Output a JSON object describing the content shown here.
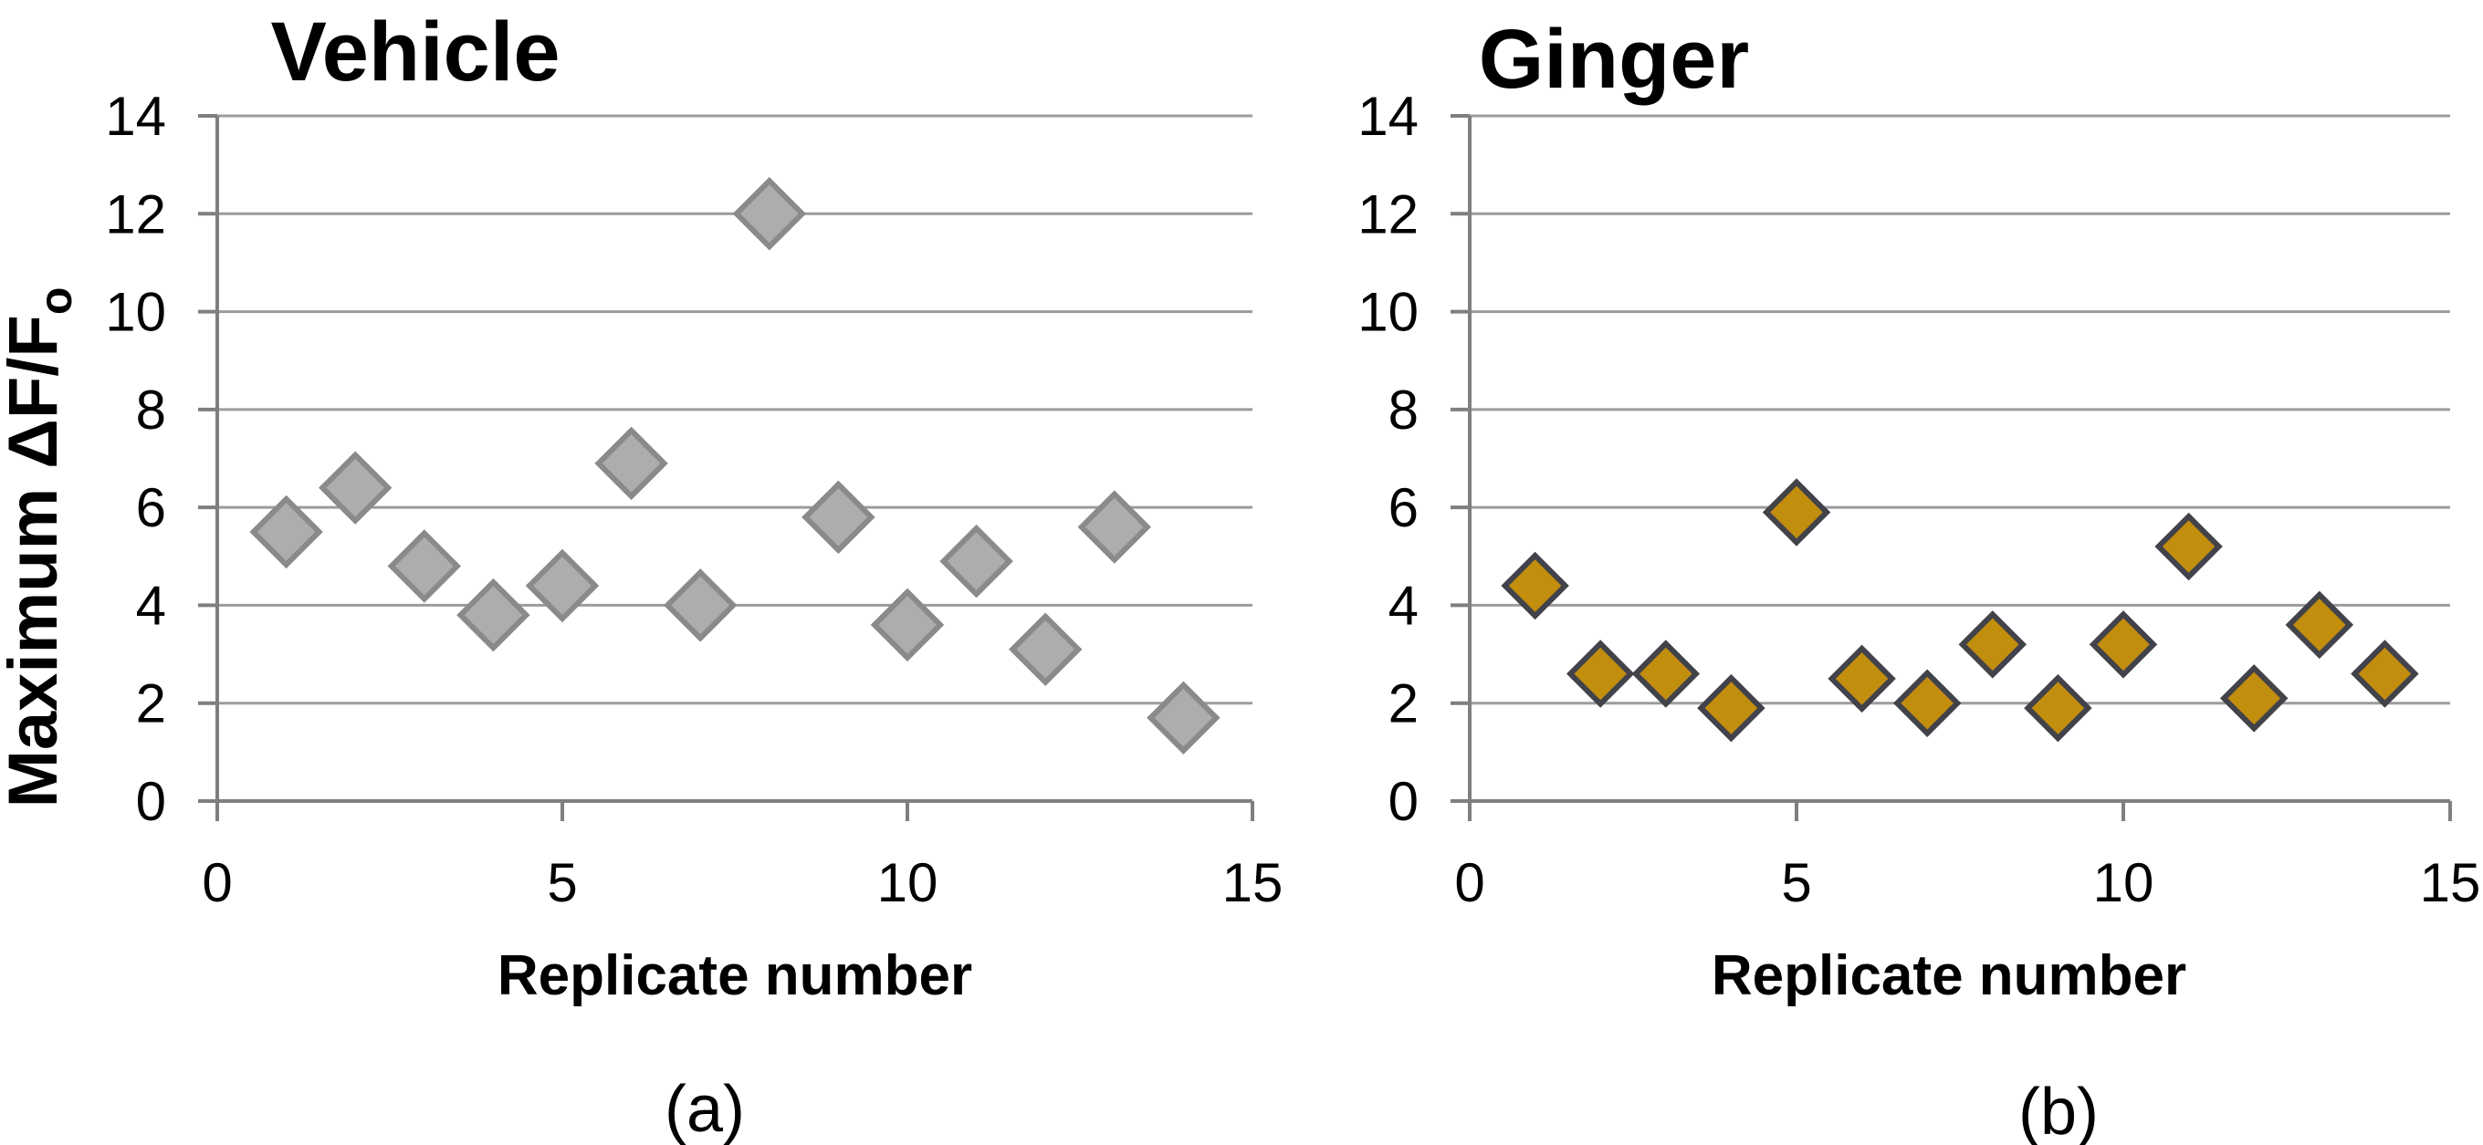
{
  "figure": {
    "background": "#FFFFFF",
    "y_axis_title_main": "Maximum ΔF/F",
    "y_axis_title_sub": "o"
  },
  "colors": {
    "gridline": "#9C9C9C",
    "axis": "#7F7F7F",
    "text": "#000000",
    "vehicle_marker_fill": "#ADADAD",
    "vehicle_marker_stroke": "#8A8A8A",
    "ginger_marker_fill": "#C28E0D",
    "ginger_marker_stroke": "#42424A"
  },
  "chart_data": [
    {
      "type": "scatter",
      "title": "Vehicle",
      "xlabel": "Replicate number",
      "ylabel": "Maximum ΔF/Fo",
      "caption": "(a)",
      "xlim": [
        0,
        15
      ],
      "ylim": [
        0,
        14
      ],
      "x_ticks": [
        0,
        5,
        10,
        15
      ],
      "y_ticks": [
        0,
        2,
        4,
        6,
        8,
        10,
        12,
        14
      ],
      "grid": "horizontal",
      "legend": "none",
      "marker": "diamond",
      "marker_fill": "#ADADAD",
      "marker_stroke": "#8A8A8A",
      "x": [
        1,
        2,
        3,
        4,
        5,
        6,
        7,
        8,
        9,
        10,
        11,
        12,
        13,
        14
      ],
      "y": [
        5.5,
        6.4,
        4.8,
        3.8,
        4.4,
        6.9,
        4.0,
        12.0,
        5.8,
        3.6,
        4.9,
        3.1,
        5.6,
        1.7
      ]
    },
    {
      "type": "scatter",
      "title": "Ginger",
      "xlabel": "Replicate number",
      "ylabel": "",
      "caption": "(b)",
      "xlim": [
        0,
        15
      ],
      "ylim": [
        0,
        14
      ],
      "x_ticks": [
        0,
        5,
        10,
        15
      ],
      "y_ticks": [
        0,
        2,
        4,
        6,
        8,
        10,
        12,
        14
      ],
      "grid": "horizontal",
      "legend": "none",
      "marker": "diamond",
      "marker_fill": "#C28E0D",
      "marker_stroke": "#42424A",
      "x": [
        1,
        2,
        3,
        4,
        5,
        6,
        7,
        8,
        9,
        10,
        11,
        12,
        13,
        14
      ],
      "y": [
        4.4,
        2.6,
        2.6,
        1.9,
        5.9,
        2.5,
        2.0,
        3.2,
        1.9,
        3.2,
        5.2,
        2.1,
        3.6,
        2.6
      ]
    }
  ]
}
